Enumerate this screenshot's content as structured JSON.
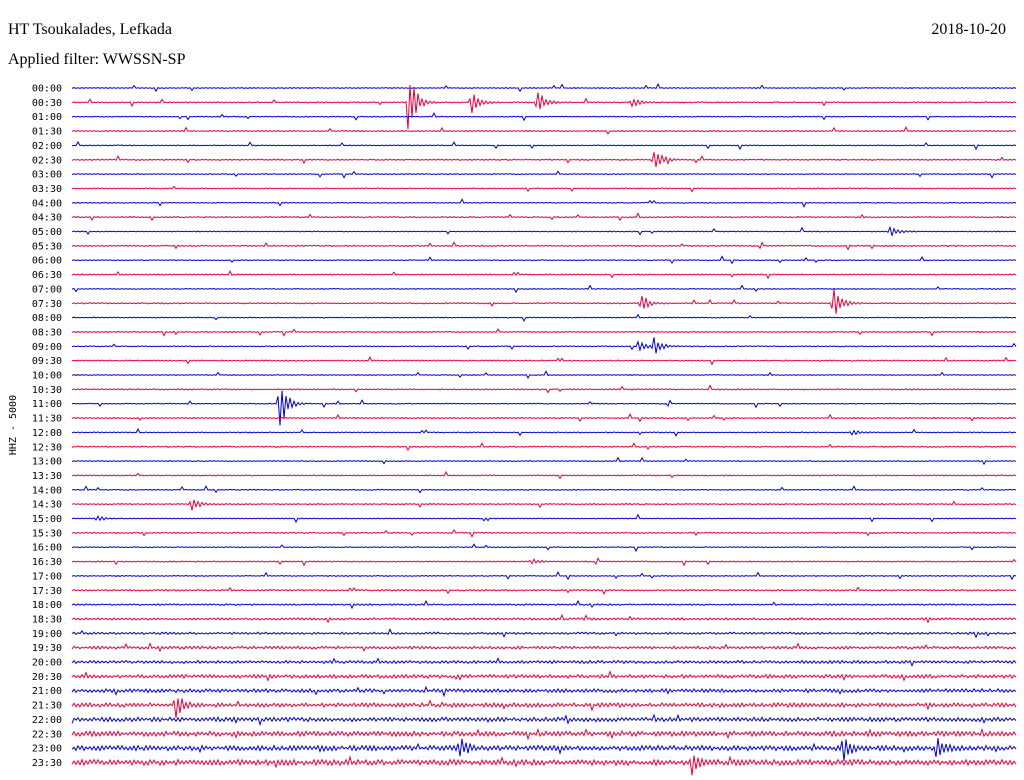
{
  "header": {
    "station": "HT Tsoukalades, Lefkada",
    "date": "2018-10-20",
    "filter": "Applied filter: WWSSN-SP"
  },
  "chart_data": {
    "type": "line",
    "chart_kind": "helicorder",
    "ylabel": "HHZ - 5000",
    "row_labels": [
      "00:00",
      "00:30",
      "01:00",
      "01:30",
      "02:00",
      "02:30",
      "03:00",
      "03:30",
      "04:00",
      "04:30",
      "05:00",
      "05:30",
      "06:00",
      "06:30",
      "07:00",
      "07:30",
      "08:00",
      "08:30",
      "09:00",
      "09:30",
      "10:00",
      "10:30",
      "11:00",
      "11:30",
      "12:00",
      "12:30",
      "13:00",
      "13:30",
      "14:00",
      "14:30",
      "15:00",
      "15:30",
      "16:00",
      "16:30",
      "17:00",
      "17:30",
      "18:00",
      "18:30",
      "19:00",
      "19:30",
      "20:00",
      "20:30",
      "21:00",
      "21:30",
      "22:00",
      "22:30",
      "23:00",
      "23:30"
    ],
    "trace_colors": [
      "#0000d0",
      "#e8003c"
    ],
    "row_minutes": 30,
    "events": [
      {
        "row": "00:30",
        "minute": 10.7,
        "amplitude": 38
      },
      {
        "row": "00:30",
        "minute": 12.7,
        "amplitude": 12
      },
      {
        "row": "00:30",
        "minute": 14.8,
        "amplitude": 14
      },
      {
        "row": "00:30",
        "minute": 17.8,
        "amplitude": 6
      },
      {
        "row": "02:30",
        "minute": 18.5,
        "amplitude": 14
      },
      {
        "row": "05:00",
        "minute": 26.0,
        "amplitude": 6
      },
      {
        "row": "07:30",
        "minute": 18.1,
        "amplitude": 10
      },
      {
        "row": "07:30",
        "minute": 24.2,
        "amplitude": 20
      },
      {
        "row": "09:00",
        "minute": 18.0,
        "amplitude": 7
      },
      {
        "row": "09:00",
        "minute": 18.5,
        "amplitude": 9
      },
      {
        "row": "11:00",
        "minute": 6.6,
        "amplitude": 30
      },
      {
        "row": "12:00",
        "minute": 24.8,
        "amplitude": 3
      },
      {
        "row": "14:30",
        "minute": 3.8,
        "amplitude": 8
      },
      {
        "row": "15:00",
        "minute": 0.8,
        "amplitude": 3
      },
      {
        "row": "16:30",
        "minute": 14.6,
        "amplitude": 3
      },
      {
        "row": "21:30",
        "minute": 3.3,
        "amplitude": 14
      },
      {
        "row": "23:00",
        "minute": 12.3,
        "amplitude": 12
      },
      {
        "row": "23:00",
        "minute": 24.5,
        "amplitude": 14
      },
      {
        "row": "23:00",
        "minute": 27.5,
        "amplitude": 14
      },
      {
        "row": "23:30",
        "minute": 19.7,
        "amplitude": 12
      }
    ]
  }
}
